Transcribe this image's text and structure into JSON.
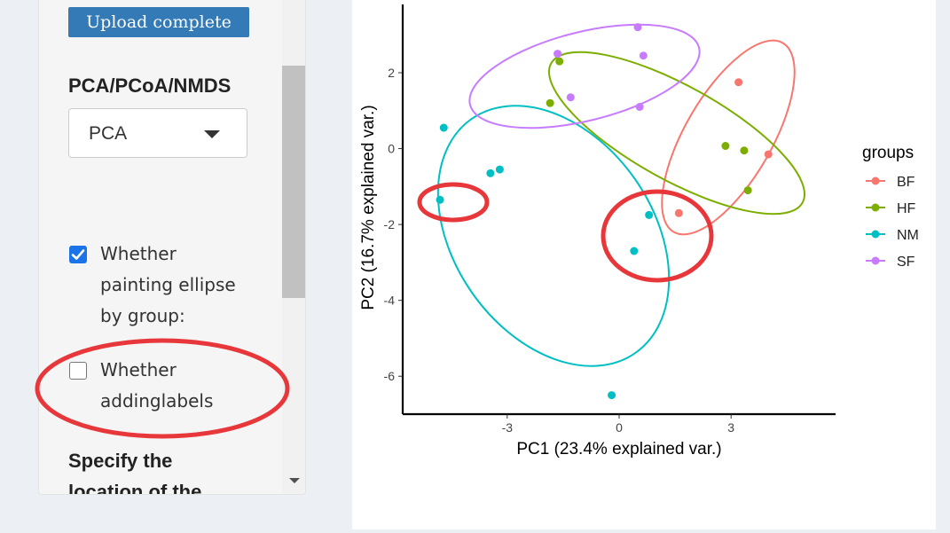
{
  "sidebar": {
    "upload_button_label": "Upload complete",
    "method_title": "PCA/PCoA/NMDS",
    "method_select": {
      "selected": "PCA"
    },
    "ellipse_checkbox": {
      "label_lines": [
        "Whether",
        "painting ellipse",
        "by group:"
      ],
      "checked": true
    },
    "labels_checkbox": {
      "label_lines": [
        "Whether",
        "addinglabels"
      ],
      "checked": false
    },
    "location_title_lines": [
      "Specify the",
      "location of the"
    ]
  },
  "plot": {
    "xlabel": "PC1 (23.4% explained var.)",
    "ylabel": "PC2 (16.7% explained var.)",
    "xticks": [
      "-3",
      "0",
      "3"
    ],
    "yticks": [
      "2",
      "0",
      "-2",
      "-4",
      "-6"
    ],
    "legend_title": "groups",
    "colors": {
      "BF": "#f8766d",
      "HF": "#7cae00",
      "NM": "#00bfc4",
      "SF": "#c77cff"
    }
  },
  "chart_data": {
    "type": "scatter",
    "xlabel": "PC1 (23.4% explained var.)",
    "ylabel": "PC2 (16.7% explained var.)",
    "xlim": [
      -5.8,
      5.8
    ],
    "ylim": [
      -7,
      3.8
    ],
    "grid": false,
    "legend": "right",
    "legend_title": "groups",
    "series": [
      {
        "name": "BF",
        "color": "#f8766d",
        "points": [
          [
            3.2,
            1.75
          ],
          [
            4.0,
            -0.15
          ],
          [
            1.6,
            -1.7
          ]
        ]
      },
      {
        "name": "HF",
        "color": "#7cae00",
        "points": [
          [
            -1.6,
            2.3
          ],
          [
            2.85,
            0.07
          ],
          [
            3.35,
            -0.05
          ],
          [
            3.45,
            -1.1
          ],
          [
            -1.85,
            1.2
          ]
        ]
      },
      {
        "name": "NM",
        "color": "#00bfc4",
        "points": [
          [
            -4.7,
            0.55
          ],
          [
            -3.45,
            -0.65
          ],
          [
            -3.2,
            -0.55
          ],
          [
            -4.8,
            -1.35
          ],
          [
            0.8,
            -1.75
          ],
          [
            0.4,
            -2.7
          ],
          [
            -0.2,
            -6.5
          ]
        ]
      },
      {
        "name": "SF",
        "color": "#c77cff",
        "points": [
          [
            0.5,
            3.2
          ],
          [
            -1.65,
            2.5
          ],
          [
            0.65,
            2.45
          ],
          [
            -1.3,
            1.35
          ],
          [
            0.55,
            1.1
          ]
        ]
      }
    ]
  }
}
